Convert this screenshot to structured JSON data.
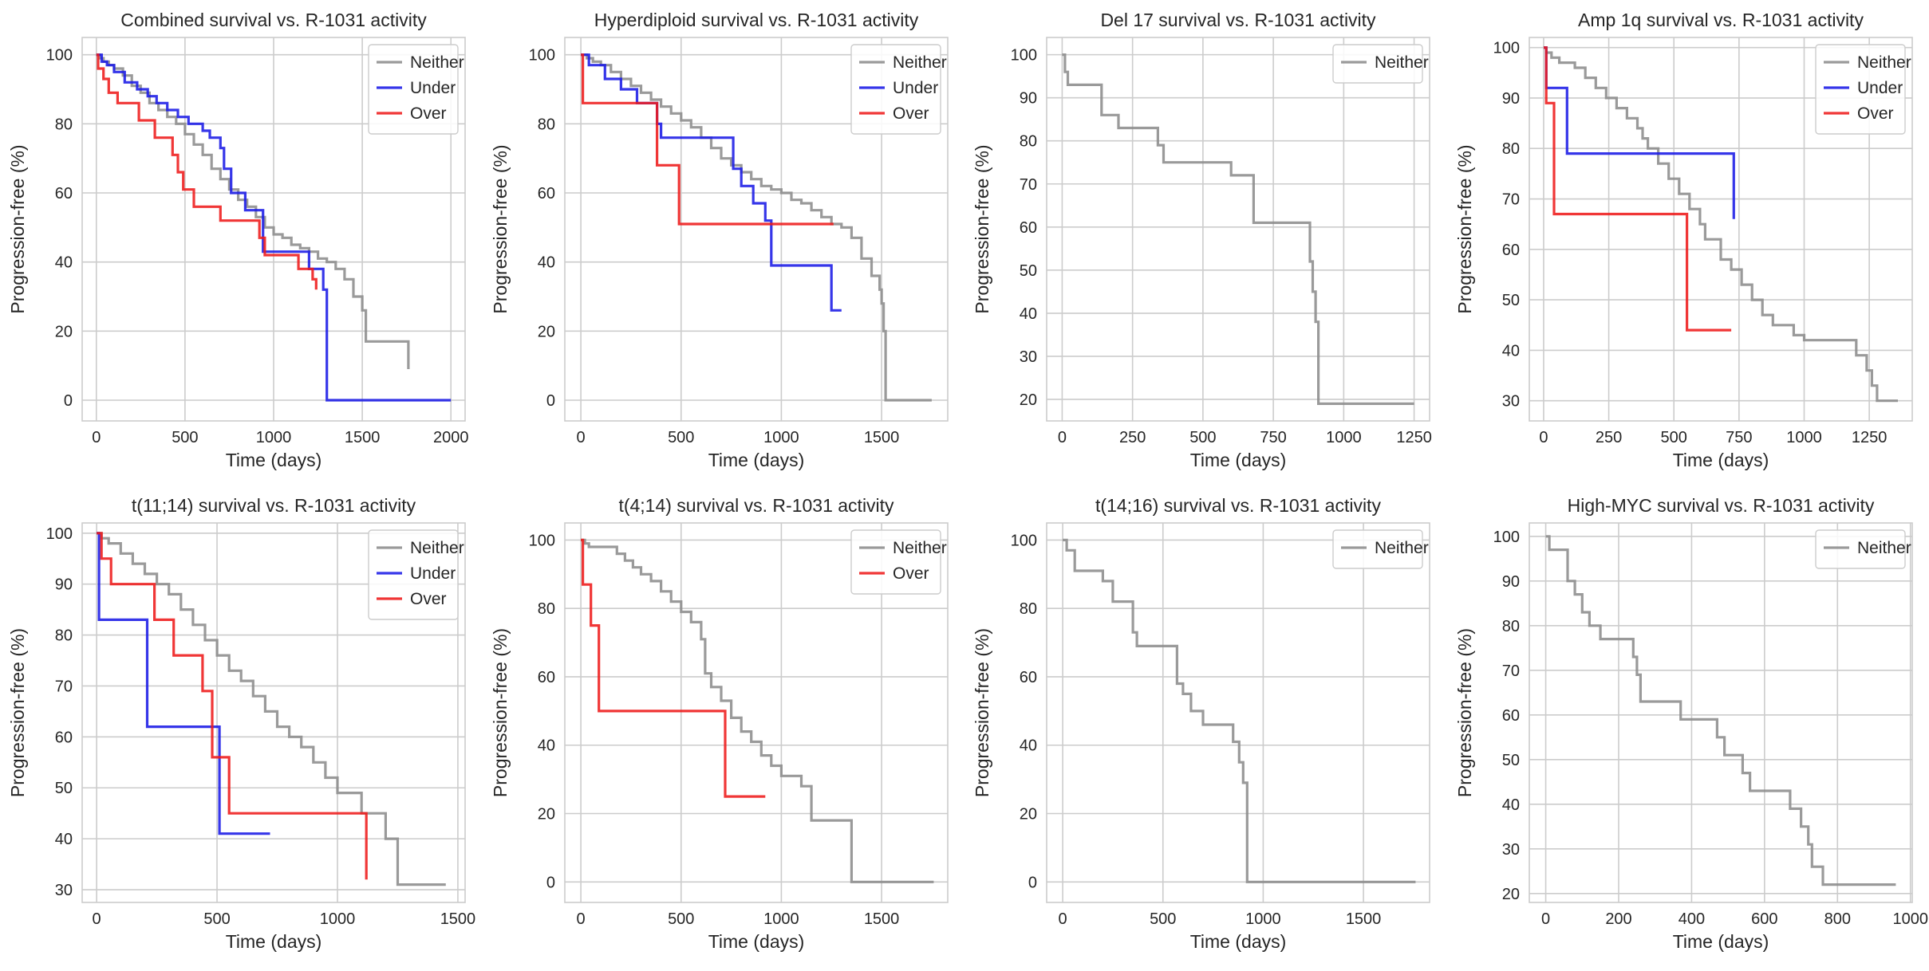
{
  "colors": {
    "Neither": "#8c8c8c",
    "Under": "#1a1ae6",
    "Over": "#ee1a1a"
  },
  "chart_data": [
    {
      "type": "line",
      "title": "Combined survival vs. R-1031 activity",
      "xlabel": "Time (days)",
      "ylabel": "Progression-free (%)",
      "xlim": [
        -80,
        2080
      ],
      "ylim": [
        -6,
        105
      ],
      "xticks": [
        0,
        500,
        1000,
        1500,
        2000
      ],
      "yticks": [
        0,
        20,
        40,
        60,
        80,
        100
      ],
      "legend": "top-right",
      "series": [
        {
          "name": "Neither",
          "x": [
            0,
            20,
            40,
            70,
            100,
            150,
            200,
            250,
            300,
            350,
            400,
            450,
            500,
            550,
            600,
            650,
            700,
            750,
            800,
            850,
            900,
            950,
            1000,
            1050,
            1100,
            1150,
            1200,
            1250,
            1300,
            1350,
            1400,
            1450,
            1500,
            1520,
            1750,
            1760
          ],
          "y": [
            100,
            99,
            98,
            97,
            96,
            94,
            91,
            89,
            86,
            84,
            82,
            80,
            77,
            74,
            71,
            67,
            64,
            61,
            58,
            56,
            53,
            50,
            48,
            47,
            45,
            44,
            43,
            41,
            40,
            38,
            35,
            30,
            26,
            17,
            17,
            9
          ]
        },
        {
          "name": "Under",
          "x": [
            0,
            30,
            60,
            100,
            160,
            230,
            290,
            340,
            400,
            460,
            520,
            600,
            640,
            700,
            720,
            760,
            840,
            940,
            1000,
            1200,
            1280,
            1300,
            2000
          ],
          "y": [
            100,
            98,
            97,
            95,
            92,
            90,
            88,
            86,
            84,
            82,
            80,
            78,
            76,
            73,
            67,
            60,
            55,
            43,
            43,
            38,
            32,
            0,
            0
          ]
        },
        {
          "name": "Over",
          "x": [
            0,
            10,
            40,
            70,
            120,
            240,
            330,
            430,
            460,
            490,
            550,
            700,
            920,
            950,
            1140,
            1220,
            1240
          ],
          "y": [
            100,
            96,
            93,
            89,
            86,
            81,
            76,
            71,
            66,
            61,
            56,
            52,
            47,
            42,
            38,
            35,
            32
          ]
        }
      ]
    },
    {
      "type": "line",
      "title": "Hyperdiploid survival vs. R-1031 activity",
      "xlabel": "Time (days)",
      "ylabel": "Progression-free (%)",
      "xlim": [
        -80,
        1830
      ],
      "ylim": [
        -6,
        105
      ],
      "xticks": [
        0,
        500,
        1000,
        1500
      ],
      "yticks": [
        0,
        20,
        40,
        60,
        80,
        100
      ],
      "legend": "top-right",
      "series": [
        {
          "name": "Neither",
          "x": [
            0,
            30,
            60,
            100,
            150,
            200,
            250,
            300,
            350,
            400,
            450,
            500,
            550,
            600,
            650,
            700,
            750,
            800,
            850,
            900,
            950,
            1000,
            1050,
            1100,
            1150,
            1200,
            1250,
            1300,
            1350,
            1400,
            1450,
            1490,
            1500,
            1510,
            1520,
            1750
          ],
          "y": [
            100,
            99,
            98,
            97,
            95,
            93,
            91,
            89,
            87,
            85,
            83,
            81,
            79,
            76,
            73,
            70,
            68,
            66,
            64,
            62,
            61,
            60,
            58,
            57,
            55,
            53,
            51,
            50,
            47,
            41,
            36,
            32,
            28,
            20,
            0,
            0
          ]
        },
        {
          "name": "Under",
          "x": [
            0,
            40,
            120,
            200,
            280,
            380,
            400,
            700,
            760,
            800,
            860,
            920,
            950,
            1250,
            1300
          ],
          "y": [
            100,
            97,
            93,
            90,
            86,
            80,
            76,
            76,
            67,
            62,
            57,
            52,
            39,
            26,
            26
          ]
        },
        {
          "name": "Over",
          "x": [
            0,
            10,
            340,
            380,
            490,
            1260
          ],
          "y": [
            100,
            86,
            86,
            68,
            51,
            51
          ]
        }
      ]
    },
    {
      "type": "line",
      "title": "Del 17 survival vs. R-1031 activity",
      "xlabel": "Time (days)",
      "ylabel": "Progression-free (%)",
      "xlim": [
        -55,
        1305
      ],
      "ylim": [
        15,
        104
      ],
      "xticks": [
        0,
        250,
        500,
        750,
        1000,
        1250
      ],
      "yticks": [
        20,
        30,
        40,
        50,
        60,
        70,
        80,
        90,
        100
      ],
      "legend": "top-right",
      "series": [
        {
          "name": "Neither",
          "x": [
            0,
            10,
            20,
            120,
            140,
            200,
            340,
            360,
            580,
            600,
            680,
            860,
            880,
            890,
            900,
            910,
            1250
          ],
          "y": [
            100,
            96,
            93,
            93,
            86,
            83,
            79,
            75,
            75,
            72,
            61,
            61,
            52,
            45,
            38,
            19,
            19
          ]
        }
      ]
    },
    {
      "type": "line",
      "title": "Amp 1q survival vs. R-1031 activity",
      "xlabel": "Time (days)",
      "ylabel": "Progression-free (%)",
      "xlim": [
        -55,
        1415
      ],
      "ylim": [
        26,
        102
      ],
      "xticks": [
        0,
        250,
        500,
        750,
        1000,
        1250
      ],
      "yticks": [
        30,
        40,
        50,
        60,
        70,
        80,
        90,
        100
      ],
      "legend": "top-right",
      "series": [
        {
          "name": "Neither",
          "x": [
            0,
            10,
            30,
            60,
            120,
            160,
            200,
            240,
            280,
            320,
            360,
            380,
            400,
            440,
            480,
            520,
            560,
            600,
            620,
            680,
            720,
            760,
            800,
            840,
            880,
            960,
            1000,
            1200,
            1240,
            1260,
            1280,
            1360
          ],
          "y": [
            100,
            99,
            98,
            97,
            96,
            94,
            92,
            90,
            88,
            86,
            84,
            82,
            80,
            77,
            74,
            71,
            68,
            65,
            62,
            58,
            56,
            53,
            50,
            47,
            45,
            43,
            42,
            39,
            36,
            33,
            30,
            30
          ]
        },
        {
          "name": "Under",
          "x": [
            0,
            10,
            90,
            720,
            730
          ],
          "y": [
            100,
            92,
            79,
            79,
            66
          ]
        },
        {
          "name": "Over",
          "x": [
            0,
            10,
            40,
            550,
            720
          ],
          "y": [
            100,
            89,
            67,
            44,
            44
          ]
        }
      ]
    },
    {
      "type": "line",
      "title": "t(11;14) survival vs. R-1031 activity",
      "xlabel": "Time (days)",
      "ylabel": "Progression-free (%)",
      "xlim": [
        -60,
        1530
      ],
      "ylim": [
        27.5,
        102
      ],
      "xticks": [
        0,
        500,
        1000,
        1500
      ],
      "yticks": [
        30,
        40,
        50,
        60,
        70,
        80,
        90,
        100
      ],
      "legend": "top-right",
      "series": [
        {
          "name": "Neither",
          "x": [
            0,
            20,
            50,
            100,
            150,
            200,
            250,
            300,
            350,
            400,
            450,
            500,
            550,
            600,
            650,
            700,
            750,
            800,
            850,
            900,
            950,
            1000,
            1100,
            1200,
            1250,
            1450
          ],
          "y": [
            100,
            99,
            98,
            96,
            94,
            92,
            90,
            88,
            85,
            82,
            79,
            76,
            73,
            71,
            68,
            65,
            62,
            60,
            58,
            55,
            52,
            49,
            45,
            40,
            31,
            31
          ]
        },
        {
          "name": "Under",
          "x": [
            0,
            10,
            210,
            500,
            510,
            720
          ],
          "y": [
            100,
            83,
            62,
            62,
            41,
            41
          ]
        },
        {
          "name": "Over",
          "x": [
            0,
            20,
            60,
            240,
            320,
            440,
            480,
            550,
            1120
          ],
          "y": [
            100,
            95,
            90,
            83,
            76,
            69,
            56,
            45,
            32
          ]
        }
      ]
    },
    {
      "type": "line",
      "title": "t(4;14) survival vs. R-1031 activity",
      "xlabel": "Time (days)",
      "ylabel": "Progression-free (%)",
      "xlim": [
        -80,
        1830
      ],
      "ylim": [
        -6,
        105
      ],
      "xticks": [
        0,
        500,
        1000,
        1500
      ],
      "yticks": [
        0,
        20,
        40,
        60,
        80,
        100
      ],
      "legend": "top-right",
      "series": [
        {
          "name": "Neither",
          "x": [
            0,
            20,
            40,
            140,
            180,
            220,
            260,
            300,
            350,
            400,
            450,
            500,
            550,
            600,
            620,
            650,
            700,
            750,
            800,
            850,
            900,
            950,
            1000,
            1100,
            1150,
            1350,
            1760
          ],
          "y": [
            100,
            99,
            98,
            98,
            96,
            94,
            92,
            90,
            88,
            85,
            82,
            79,
            76,
            71,
            61,
            57,
            53,
            48,
            44,
            41,
            37,
            34,
            31,
            28,
            18,
            0,
            0
          ]
        },
        {
          "name": "Over",
          "x": [
            0,
            10,
            50,
            90,
            720,
            920
          ],
          "y": [
            100,
            87,
            75,
            50,
            25,
            25
          ]
        }
      ]
    },
    {
      "type": "line",
      "title": "t(14;16) survival vs. R-1031 activity",
      "xlabel": "Time (days)",
      "ylabel": "Progression-free (%)",
      "xlim": [
        -80,
        1830
      ],
      "ylim": [
        -6,
        105
      ],
      "xticks": [
        0,
        500,
        1000,
        1500
      ],
      "yticks": [
        0,
        20,
        40,
        60,
        80,
        100
      ],
      "legend": "top-right",
      "series": [
        {
          "name": "Neither",
          "x": [
            0,
            20,
            60,
            200,
            250,
            350,
            370,
            550,
            570,
            600,
            640,
            700,
            850,
            880,
            900,
            920,
            1760
          ],
          "y": [
            100,
            97,
            91,
            88,
            82,
            73,
            69,
            69,
            58,
            55,
            50,
            46,
            41,
            35,
            29,
            0,
            0
          ]
        }
      ]
    },
    {
      "type": "line",
      "title": "High-MYC survival vs. R-1031 activity",
      "xlabel": "Time (days)",
      "ylabel": "Progression-free (%)",
      "xlim": [
        -45,
        1005
      ],
      "ylim": [
        18,
        103
      ],
      "xticks": [
        0,
        200,
        400,
        600,
        800,
        1000
      ],
      "yticks": [
        20,
        30,
        40,
        50,
        60,
        70,
        80,
        90,
        100
      ],
      "legend": "top-right",
      "series": [
        {
          "name": "Neither",
          "x": [
            0,
            10,
            60,
            80,
            100,
            120,
            150,
            240,
            250,
            260,
            370,
            470,
            490,
            540,
            560,
            670,
            700,
            720,
            730,
            760,
            960
          ],
          "y": [
            100,
            97,
            90,
            87,
            83,
            80,
            77,
            73,
            69,
            63,
            59,
            55,
            51,
            47,
            43,
            39,
            35,
            31,
            26,
            22,
            22
          ]
        }
      ]
    }
  ]
}
